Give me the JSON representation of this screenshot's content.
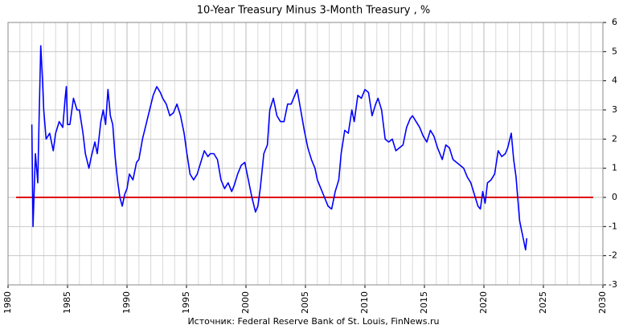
{
  "chart_data": {
    "type": "line",
    "title": "10-Year Treasury Minus 3-Month Treasury , %",
    "source": "Источник: Federal Reserve Bank of St. Louis, FinNews.ru",
    "x": [
      1982.0,
      1982.1,
      1982.3,
      1982.5,
      1982.6,
      1982.75,
      1982.9,
      1983.0,
      1983.2,
      1983.5,
      1983.8,
      1984.0,
      1984.3,
      1984.6,
      1984.8,
      1984.9,
      1985.0,
      1985.2,
      1985.5,
      1985.8,
      1986.0,
      1986.3,
      1986.5,
      1986.8,
      1987.0,
      1987.3,
      1987.5,
      1987.8,
      1988.0,
      1988.2,
      1988.4,
      1988.6,
      1988.8,
      1989.0,
      1989.2,
      1989.4,
      1989.6,
      1989.8,
      1990.0,
      1990.2,
      1990.5,
      1990.8,
      1991.0,
      1991.3,
      1991.6,
      1991.9,
      1992.2,
      1992.5,
      1992.8,
      1993.0,
      1993.3,
      1993.6,
      1993.9,
      1994.2,
      1994.5,
      1994.8,
      1995.0,
      1995.3,
      1995.6,
      1995.9,
      1996.2,
      1996.5,
      1996.8,
      1997.0,
      1997.3,
      1997.6,
      1997.9,
      1998.2,
      1998.5,
      1998.8,
      1999.0,
      1999.3,
      1999.6,
      1999.9,
      2000.2,
      2000.5,
      2000.8,
      2001.0,
      2001.2,
      2001.5,
      2001.8,
      2002.0,
      2002.3,
      2002.6,
      2002.9,
      2003.2,
      2003.5,
      2003.8,
      2004.0,
      2004.3,
      2004.6,
      2004.9,
      2005.2,
      2005.5,
      2005.8,
      2006.0,
      2006.3,
      2006.6,
      2006.9,
      2007.2,
      2007.5,
      2007.8,
      2008.0,
      2008.3,
      2008.6,
      2008.9,
      2009.1,
      2009.4,
      2009.7,
      2010.0,
      2010.3,
      2010.6,
      2010.9,
      2011.1,
      2011.4,
      2011.7,
      2012.0,
      2012.3,
      2012.6,
      2012.9,
      2013.2,
      2013.5,
      2013.8,
      2014.0,
      2014.3,
      2014.6,
      2014.9,
      2015.2,
      2015.5,
      2015.8,
      2016.1,
      2016.5,
      2016.8,
      2017.1,
      2017.4,
      2017.7,
      2018.0,
      2018.3,
      2018.6,
      2018.9,
      2019.2,
      2019.5,
      2019.7,
      2019.9,
      2020.1,
      2020.3,
      2020.6,
      2020.9,
      2021.2,
      2021.5,
      2021.8,
      2022.0,
      2022.3,
      2022.5,
      2022.7,
      2022.9,
      2023.0,
      2023.2,
      2023.4,
      2023.5,
      2023.6
    ],
    "series": [
      {
        "name": "10Y-3M",
        "color": "#0000ff",
        "values": [
          2.5,
          -1.0,
          1.5,
          0.5,
          2.5,
          5.2,
          4.0,
          3.0,
          2.0,
          2.2,
          1.6,
          2.2,
          2.6,
          2.4,
          3.4,
          3.8,
          2.5,
          2.5,
          3.4,
          3.0,
          3.0,
          2.2,
          1.5,
          1.0,
          1.4,
          1.9,
          1.5,
          2.6,
          3.0,
          2.5,
          3.7,
          2.8,
          2.5,
          1.4,
          0.6,
          0.0,
          -0.3,
          0.1,
          0.3,
          0.8,
          0.6,
          1.2,
          1.3,
          2.0,
          2.5,
          3.0,
          3.5,
          3.8,
          3.6,
          3.4,
          3.2,
          2.8,
          2.9,
          3.2,
          2.8,
          2.2,
          1.6,
          0.8,
          0.6,
          0.8,
          1.2,
          1.6,
          1.4,
          1.5,
          1.5,
          1.3,
          0.6,
          0.3,
          0.5,
          0.2,
          0.4,
          0.8,
          1.1,
          1.2,
          0.6,
          0.0,
          -0.5,
          -0.3,
          0.3,
          1.5,
          1.8,
          3.0,
          3.4,
          2.8,
          2.6,
          2.6,
          3.2,
          3.2,
          3.4,
          3.7,
          3.0,
          2.3,
          1.7,
          1.3,
          1.0,
          0.6,
          0.3,
          0.0,
          -0.3,
          -0.4,
          0.2,
          0.6,
          1.5,
          2.3,
          2.2,
          3.0,
          2.6,
          3.5,
          3.4,
          3.7,
          3.6,
          2.8,
          3.2,
          3.4,
          3.0,
          2.0,
          1.9,
          2.0,
          1.6,
          1.7,
          1.8,
          2.4,
          2.7,
          2.8,
          2.6,
          2.4,
          2.1,
          1.9,
          2.3,
          2.1,
          1.7,
          1.3,
          1.8,
          1.7,
          1.3,
          1.2,
          1.1,
          1.0,
          0.7,
          0.5,
          0.1,
          -0.3,
          -0.4,
          0.2,
          -0.2,
          0.5,
          0.6,
          0.8,
          1.6,
          1.4,
          1.5,
          1.7,
          2.2,
          1.3,
          0.7,
          -0.3,
          -0.8,
          -1.2,
          -1.6,
          -1.8,
          -1.4
        ]
      }
    ],
    "xlim": [
      1980,
      2030
    ],
    "xticks": [
      1980,
      1985,
      1990,
      1995,
      2000,
      2005,
      2010,
      2015,
      2020,
      2025,
      2030
    ],
    "ylim": [
      -3,
      6
    ],
    "yticks": [
      -3,
      -2,
      -1,
      0,
      1,
      2,
      3,
      4,
      5,
      6
    ],
    "grid": true,
    "zero_line_color": "#e00000"
  }
}
